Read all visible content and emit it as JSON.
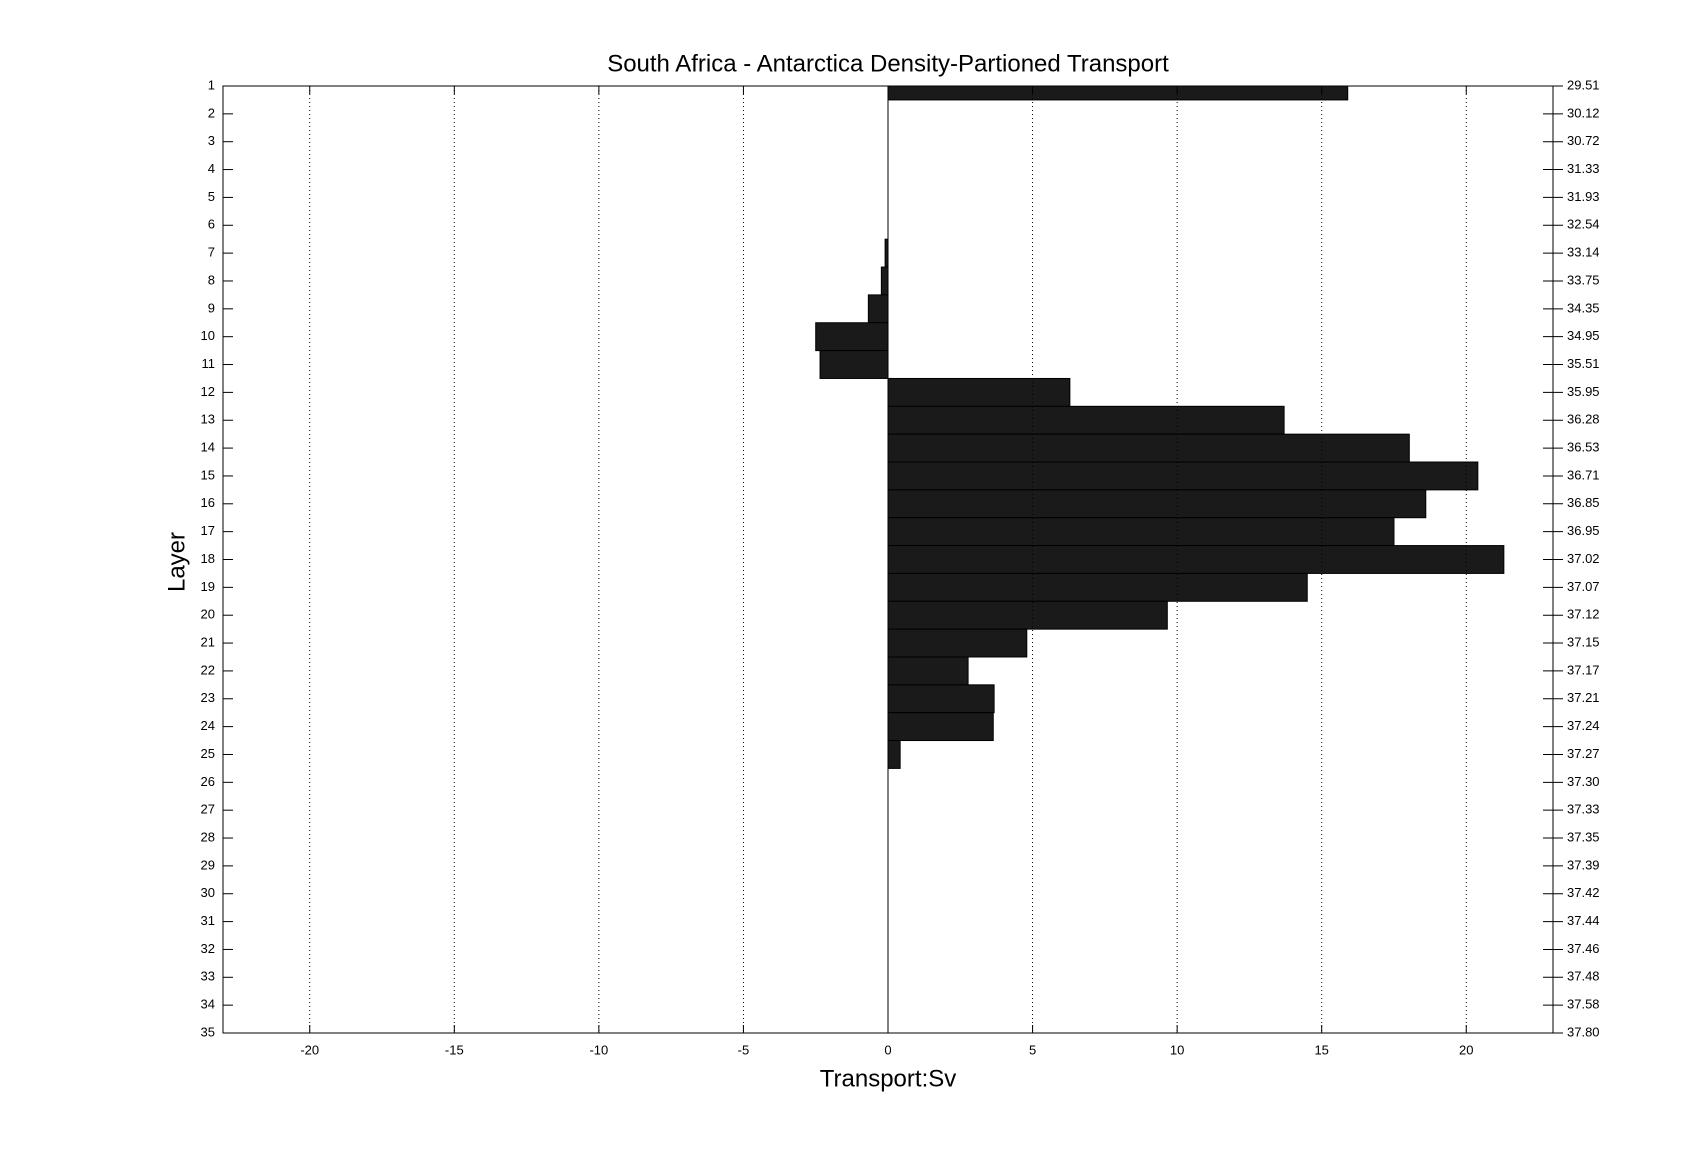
{
  "chart_data": {
    "type": "barh",
    "title": "South Africa - Antarctica Density-Partioned Transport",
    "x_label": "Transport:Sv",
    "y_label": "Layer",
    "categories": [
      1,
      2,
      3,
      4,
      5,
      6,
      7,
      8,
      9,
      10,
      11,
      12,
      13,
      14,
      15,
      16,
      17,
      18,
      19,
      20,
      21,
      22,
      23,
      24,
      25,
      26,
      27,
      28,
      29,
      30,
      31,
      32,
      33,
      34,
      35
    ],
    "values": [
      15.9,
      0,
      0,
      0,
      0,
      0,
      -0.1,
      -0.23,
      -0.68,
      -2.5,
      -2.35,
      6.29,
      13.7,
      18.03,
      20.4,
      18.6,
      17.5,
      21.3,
      14.5,
      9.66,
      4.8,
      2.77,
      3.67,
      3.64,
      0.42,
      0,
      0,
      0,
      0,
      0,
      0,
      0,
      0,
      0,
      0
    ],
    "color": "#1a1a1a",
    "xlim": [
      -23,
      23
    ],
    "xticks": [
      -20,
      -15,
      -10,
      -5,
      0,
      5,
      10,
      15,
      20
    ],
    "ylim": [
      1,
      35
    ],
    "yticks": [
      1,
      2,
      3,
      4,
      5,
      6,
      7,
      8,
      9,
      10,
      11,
      12,
      13,
      14,
      15,
      16,
      17,
      18,
      19,
      20,
      21,
      22,
      23,
      24,
      25,
      26,
      27,
      28,
      29,
      30,
      31,
      32,
      33,
      34,
      35
    ],
    "y2lim": [
      1,
      35
    ],
    "y2ticks": [
      {
        "value": 1,
        "label": "29.51"
      },
      {
        "value": 2,
        "label": "30.12"
      },
      {
        "value": 3,
        "label": "30.72"
      },
      {
        "value": 4,
        "label": "31.33"
      },
      {
        "value": 5,
        "label": "31.93"
      },
      {
        "value": 6,
        "label": "32.54"
      },
      {
        "value": 7,
        "label": "33.14"
      },
      {
        "value": 8,
        "label": "33.75"
      },
      {
        "value": 9,
        "label": "34.35"
      },
      {
        "value": 10,
        "label": "34.95"
      },
      {
        "value": 11,
        "label": "35.51"
      },
      {
        "value": 12,
        "label": "35.95"
      },
      {
        "value": 13,
        "label": "36.28"
      },
      {
        "value": 14,
        "label": "36.53"
      },
      {
        "value": 15,
        "label": "36.71"
      },
      {
        "value": 16,
        "label": "36.85"
      },
      {
        "value": 17,
        "label": "36.95"
      },
      {
        "value": 18,
        "label": "37.02"
      },
      {
        "value": 19,
        "label": "37.07"
      },
      {
        "value": 20,
        "label": "37.12"
      },
      {
        "value": 21,
        "label": "37.15"
      },
      {
        "value": 22,
        "label": "37.17"
      },
      {
        "value": 23,
        "label": "37.21"
      },
      {
        "value": 24,
        "label": "37.24"
      },
      {
        "value": 25,
        "label": "37.27"
      },
      {
        "value": 26,
        "label": "37.30"
      },
      {
        "value": 27,
        "label": "37.33"
      },
      {
        "value": 28,
        "label": "37.35"
      },
      {
        "value": 29,
        "label": "37.39"
      },
      {
        "value": 30,
        "label": "37.42"
      },
      {
        "value": 31,
        "label": "37.44"
      },
      {
        "value": 32,
        "label": "37.46"
      },
      {
        "value": 33,
        "label": "37.48"
      },
      {
        "value": 34,
        "label": "37.58"
      },
      {
        "value": 35,
        "label": "37.80"
      }
    ],
    "y_reversed": true,
    "grid": true
  }
}
